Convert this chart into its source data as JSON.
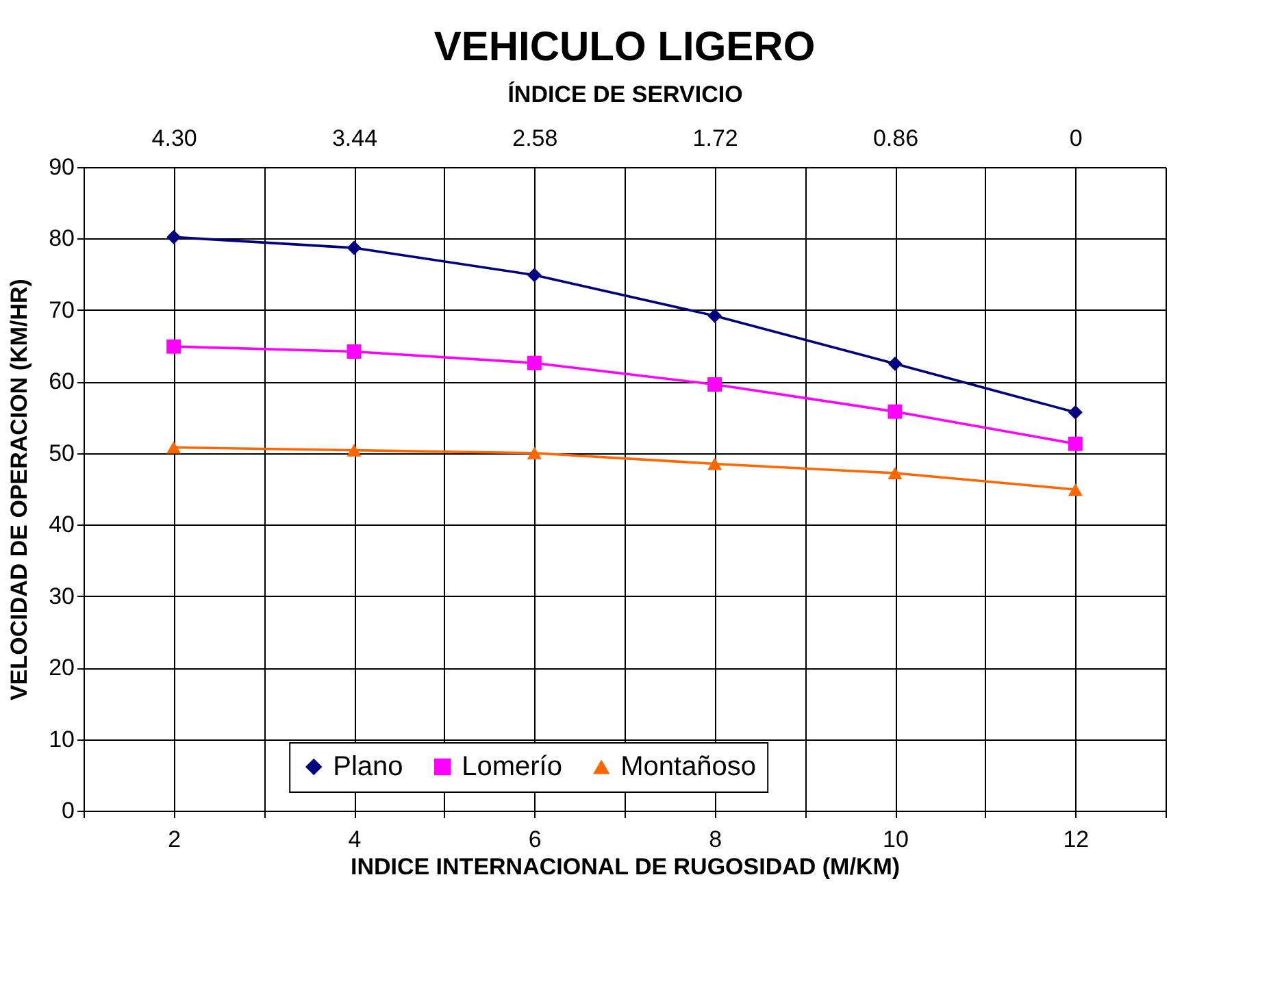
{
  "chart_data": {
    "type": "line",
    "title": "VEHICULO LIGERO",
    "x2label": "ÍNDICE DE SERVICIO",
    "xlabel": "INDICE INTERNACIONAL DE RUGOSIDAD (M/KM)",
    "ylabel": "VELOCIDAD DE OPERACION (KM/HR)",
    "x": [
      2,
      4,
      6,
      8,
      10,
      12
    ],
    "series": [
      {
        "name": "Plano",
        "color": "#000080",
        "marker": "diamond",
        "values": [
          80.2,
          78.7,
          74.9,
          69.2,
          62.5,
          55.7
        ]
      },
      {
        "name": "Lomerío",
        "color": "#ff00ff",
        "marker": "square",
        "values": [
          64.9,
          64.2,
          62.6,
          59.6,
          55.8,
          51.3
        ]
      },
      {
        "name": "Montañoso",
        "color": "#ff6600",
        "marker": "triangle",
        "values": [
          50.8,
          50.4,
          50.0,
          48.5,
          47.2,
          44.9
        ]
      }
    ],
    "xlim": [
      1,
      13
    ],
    "xticks": [
      {
        "value": 1,
        "label": null
      },
      2,
      {
        "value": 3,
        "label": null
      },
      4,
      {
        "value": 5,
        "label": null
      },
      6,
      {
        "value": 7,
        "label": null
      },
      8,
      {
        "value": 9,
        "label": null
      },
      10,
      {
        "value": 11,
        "label": null
      },
      12,
      {
        "value": 13,
        "label": null
      }
    ],
    "x2lim": [
      4.73,
      -0.43
    ],
    "x2ticks": [
      {
        "value": 4.3,
        "label": "4.30"
      },
      {
        "value": 3.44,
        "label": "3.44"
      },
      {
        "value": 2.58,
        "label": "2.58"
      },
      {
        "value": 1.72,
        "label": "1.72"
      },
      {
        "value": 0.86,
        "label": "0.86"
      },
      0
    ],
    "ylim": [
      0,
      90
    ],
    "yticks": [
      0,
      10,
      20,
      30,
      40,
      50,
      60,
      70,
      80,
      90
    ],
    "grid": true,
    "legend": "bottom",
    "line_style": "solid"
  }
}
